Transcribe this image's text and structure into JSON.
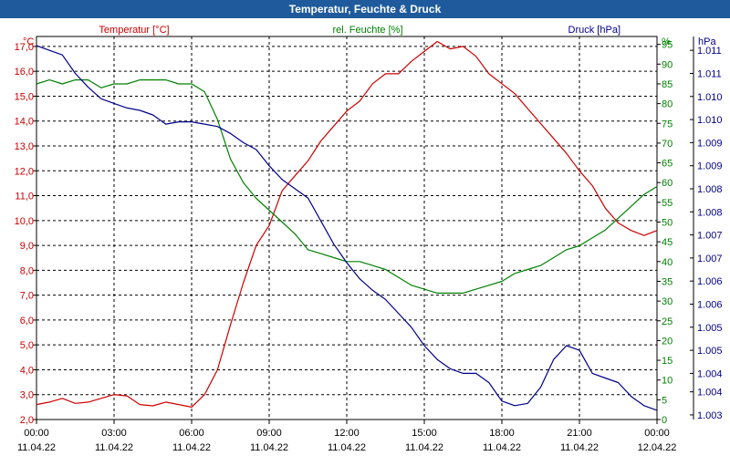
{
  "title": "Temperatur, Feuchte & Druck",
  "colors": {
    "temperature": "#cc0000",
    "humidity": "#008000",
    "pressure": "#00008b",
    "axis": "#000000",
    "grid": "#000000"
  },
  "chart_data": {
    "type": "line",
    "title": "Temperatur, Feuchte & Druck",
    "x_ticks": [
      {
        "time": "00:00",
        "date": "11.04.22"
      },
      {
        "time": "03:00",
        "date": "11.04.22"
      },
      {
        "time": "06:00",
        "date": "11.04.22"
      },
      {
        "time": "09:00",
        "date": "11.04.22"
      },
      {
        "time": "12:00",
        "date": "11.04.22"
      },
      {
        "time": "15:00",
        "date": "11.04.22"
      },
      {
        "time": "18:00",
        "date": "11.04.22"
      },
      {
        "time": "21:00",
        "date": "11.04.22"
      },
      {
        "time": "00:00",
        "date": "12.04.22"
      }
    ],
    "x_range_hours": [
      0,
      24
    ],
    "axes": {
      "temperature": {
        "label": "Temperatur [°C]",
        "unit": "°C",
        "range": [
          2.0,
          17.4
        ],
        "ticks": [
          "2,0",
          "3,0",
          "4,0",
          "5,0",
          "6,0",
          "7,0",
          "8,0",
          "9,0",
          "10,0",
          "11,0",
          "12,0",
          "13,0",
          "14,0",
          "15,0",
          "16,0",
          "17,0"
        ]
      },
      "humidity": {
        "label": "rel. Feuchte [%]",
        "unit": "%",
        "range": [
          0,
          97
        ],
        "ticks": [
          "0",
          "5",
          "10",
          "15",
          "20",
          "25",
          "30",
          "35",
          "40",
          "45",
          "50",
          "55",
          "60",
          "65",
          "70",
          "75",
          "80",
          "85",
          "90",
          "95"
        ]
      },
      "pressure": {
        "label": "Druck [hPa]",
        "unit": "hPa",
        "range": [
          1003.0,
          1011.3
        ],
        "ticks": [
          {
            "v": 1003.1,
            "label": "1.003"
          },
          {
            "v": 1003.6,
            "label": "1.004"
          },
          {
            "v": 1004.0,
            "label": "1.004"
          },
          {
            "v": 1004.5,
            "label": "1.005"
          },
          {
            "v": 1005.0,
            "label": "1.005"
          },
          {
            "v": 1005.5,
            "label": "1.006"
          },
          {
            "v": 1006.0,
            "label": "1.006"
          },
          {
            "v": 1006.5,
            "label": "1.007"
          },
          {
            "v": 1007.0,
            "label": "1.007"
          },
          {
            "v": 1007.5,
            "label": "1.008"
          },
          {
            "v": 1008.0,
            "label": "1.008"
          },
          {
            "v": 1008.5,
            "label": "1.009"
          },
          {
            "v": 1009.0,
            "label": "1.009"
          },
          {
            "v": 1009.5,
            "label": "1.010"
          },
          {
            "v": 1010.0,
            "label": "1.010"
          },
          {
            "v": 1010.5,
            "label": "1.011"
          },
          {
            "v": 1011.0,
            "label": "1.011"
          }
        ]
      }
    },
    "series": [
      {
        "name": "Temperatur",
        "axis": "temperature",
        "x": [
          0,
          0.5,
          1,
          1.5,
          2,
          2.5,
          3,
          3.5,
          4,
          4.5,
          5,
          5.5,
          6,
          6.5,
          7,
          7.5,
          8,
          8.5,
          9,
          9.5,
          10,
          10.5,
          11,
          11.5,
          12,
          12.5,
          13,
          13.5,
          14,
          14.5,
          15,
          15.5,
          16,
          16.5,
          17,
          17.5,
          18,
          18.5,
          19,
          19.5,
          20,
          20.5,
          21,
          21.5,
          22,
          22.5,
          23,
          23.5,
          24
        ],
        "values": [
          2.6,
          2.7,
          2.85,
          2.65,
          2.7,
          2.85,
          3.0,
          2.95,
          2.6,
          2.55,
          2.7,
          2.6,
          2.5,
          3.0,
          4.0,
          5.8,
          7.5,
          9.0,
          9.8,
          11.2,
          11.8,
          12.4,
          13.2,
          13.8,
          14.4,
          14.8,
          15.5,
          15.9,
          15.9,
          16.4,
          16.8,
          17.2,
          16.9,
          17.0,
          16.6,
          15.9,
          15.5,
          15.1,
          14.5,
          13.9,
          13.3,
          12.7,
          12.0,
          11.4,
          10.5,
          9.9,
          9.6,
          9.4,
          9.6
        ]
      },
      {
        "name": "rel. Feuchte",
        "axis": "humidity",
        "x": [
          0,
          0.5,
          1,
          1.5,
          2,
          2.5,
          3,
          3.5,
          4,
          4.5,
          5,
          5.5,
          6,
          6.5,
          7,
          7.5,
          8,
          8.5,
          9,
          9.5,
          10,
          10.5,
          11,
          11.5,
          12,
          12.5,
          13,
          13.5,
          14,
          14.5,
          15,
          15.5,
          16,
          16.5,
          17,
          17.5,
          18,
          18.5,
          19,
          19.5,
          20,
          20.5,
          21,
          21.5,
          22,
          22.5,
          23,
          23.5,
          24
        ],
        "values": [
          85,
          86,
          85,
          86,
          86,
          84,
          85,
          85,
          86,
          86,
          86,
          85,
          85,
          83,
          76,
          66,
          60,
          56,
          53,
          50,
          47,
          43,
          42,
          41,
          40,
          40,
          39,
          38,
          36,
          34,
          33,
          32,
          32,
          32,
          33,
          34,
          35,
          37,
          38,
          39,
          41,
          43,
          44,
          46,
          48,
          51,
          54,
          57,
          59
        ]
      },
      {
        "name": "Druck",
        "axis": "pressure",
        "x": [
          0,
          0.5,
          1,
          1.5,
          2,
          2.5,
          3,
          3.5,
          4,
          4.5,
          5,
          5.5,
          6,
          6.5,
          7,
          7.5,
          8,
          8.5,
          9,
          9.5,
          10,
          10.5,
          11,
          11.5,
          12,
          12.5,
          13,
          13.5,
          14,
          14.5,
          15,
          15.5,
          16,
          16.5,
          17,
          17.5,
          18,
          18.5,
          19,
          19.5,
          20,
          20.5,
          21,
          21.5,
          22,
          22.5,
          23,
          23.5,
          24
        ],
        "values": [
          1011.1,
          1011.0,
          1010.9,
          1010.5,
          1010.2,
          1009.95,
          1009.85,
          1009.75,
          1009.7,
          1009.6,
          1009.4,
          1009.45,
          1009.45,
          1009.4,
          1009.35,
          1009.2,
          1009.0,
          1008.85,
          1008.5,
          1008.2,
          1008.0,
          1007.8,
          1007.3,
          1006.8,
          1006.4,
          1006.05,
          1005.8,
          1005.6,
          1005.3,
          1005.0,
          1004.6,
          1004.3,
          1004.1,
          1004.0,
          1004.0,
          1003.8,
          1003.4,
          1003.3,
          1003.35,
          1003.7,
          1004.3,
          1004.6,
          1004.5,
          1004.0,
          1003.9,
          1003.8,
          1003.5,
          1003.3,
          1003.2
        ]
      }
    ]
  }
}
